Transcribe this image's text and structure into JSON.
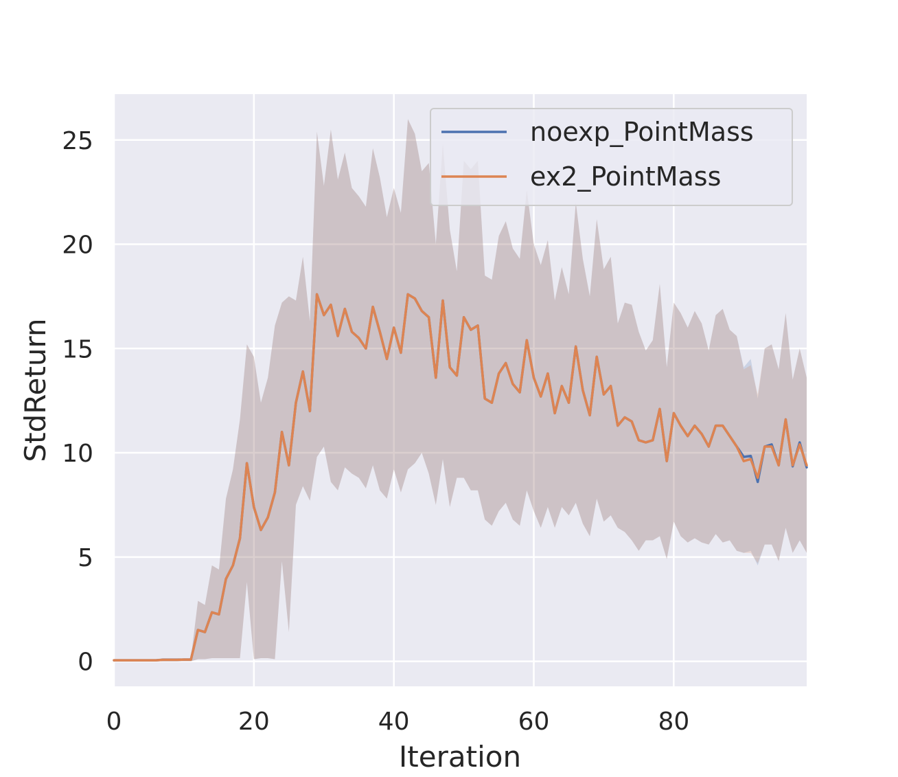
{
  "chart_data": {
    "type": "line",
    "xlabel": "Iteration",
    "ylabel": "StdReturn",
    "xlim": [
      0,
      99
    ],
    "ylim": [
      -1.2,
      27.2
    ],
    "xticks": [
      0,
      20,
      40,
      60,
      80
    ],
    "yticks": [
      0,
      5,
      10,
      15,
      20,
      25
    ],
    "grid": true,
    "legend_position": "top-right",
    "background": "#EAEAF2",
    "x": [
      0,
      1,
      2,
      3,
      4,
      5,
      6,
      7,
      8,
      9,
      10,
      11,
      12,
      13,
      14,
      15,
      16,
      17,
      18,
      19,
      20,
      21,
      22,
      23,
      24,
      25,
      26,
      27,
      28,
      29,
      30,
      31,
      32,
      33,
      34,
      35,
      36,
      37,
      38,
      39,
      40,
      41,
      42,
      43,
      44,
      45,
      46,
      47,
      48,
      49,
      50,
      51,
      52,
      53,
      54,
      55,
      56,
      57,
      58,
      59,
      60,
      61,
      62,
      63,
      64,
      65,
      66,
      67,
      68,
      69,
      70,
      71,
      72,
      73,
      74,
      75,
      76,
      77,
      78,
      79,
      80,
      81,
      82,
      83,
      84,
      85,
      86,
      87,
      88,
      89,
      90,
      91,
      92,
      93,
      94,
      95,
      96,
      97,
      98,
      99
    ],
    "series": [
      {
        "name": "noexp_PointMass",
        "color": "#4C72B0",
        "values": [
          0.05,
          0.05,
          0.05,
          0.05,
          0.05,
          0.05,
          0.05,
          0.07,
          0.07,
          0.07,
          0.08,
          0.08,
          1.5,
          1.4,
          2.35,
          2.25,
          3.95,
          4.6,
          5.9,
          9.5,
          7.4,
          6.3,
          6.9,
          8.1,
          11.0,
          9.4,
          12.4,
          13.9,
          12.0,
          17.6,
          16.6,
          17.1,
          15.6,
          16.9,
          15.8,
          15.5,
          15.0,
          17.0,
          15.8,
          14.5,
          16.0,
          14.8,
          17.6,
          17.4,
          16.8,
          16.5,
          13.6,
          17.3,
          14.1,
          13.7,
          16.5,
          15.9,
          16.1,
          12.6,
          12.4,
          13.8,
          14.3,
          13.3,
          12.9,
          15.4,
          13.6,
          12.7,
          13.8,
          11.9,
          13.2,
          12.4,
          15.1,
          13.0,
          11.8,
          14.6,
          12.8,
          13.2,
          11.3,
          11.7,
          11.5,
          10.6,
          10.5,
          10.6,
          12.1,
          9.6,
          11.9,
          11.3,
          10.8,
          11.3,
          10.9,
          10.3,
          11.3,
          11.3,
          10.8,
          10.3,
          9.8,
          9.85,
          8.6,
          10.3,
          10.4,
          9.4,
          11.6,
          9.35,
          10.5,
          9.3
        ],
        "lower": [
          0.0,
          0.0,
          0.0,
          0.0,
          0.0,
          0.0,
          0.0,
          0.0,
          0.0,
          0.0,
          0.0,
          0.0,
          0.1,
          0.1,
          0.15,
          0.15,
          0.15,
          0.15,
          0.15,
          3.8,
          0.1,
          0.15,
          0.15,
          0.1,
          4.8,
          1.4,
          7.5,
          8.4,
          7.7,
          9.8,
          10.3,
          8.6,
          8.2,
          9.3,
          9.0,
          8.8,
          8.3,
          9.4,
          8.2,
          7.8,
          9.2,
          8.1,
          9.2,
          9.5,
          10.0,
          9.0,
          7.5,
          9.7,
          7.4,
          8.8,
          8.8,
          8.2,
          8.2,
          6.8,
          6.5,
          7.2,
          7.6,
          6.8,
          6.5,
          8.2,
          7.2,
          6.4,
          7.4,
          6.4,
          7.4,
          7.0,
          7.6,
          6.6,
          6.0,
          7.8,
          6.7,
          7.0,
          6.4,
          6.2,
          5.8,
          5.3,
          5.8,
          5.8,
          6.0,
          4.9,
          6.7,
          6.0,
          5.7,
          5.9,
          5.7,
          5.6,
          6.1,
          5.7,
          5.8,
          5.3,
          5.2,
          5.3,
          4.6,
          5.6,
          5.6,
          4.8,
          6.4,
          5.2,
          5.8,
          5.2
        ],
        "upper": [
          0.1,
          0.1,
          0.1,
          0.1,
          0.1,
          0.1,
          0.1,
          0.15,
          0.15,
          0.15,
          0.15,
          0.15,
          2.9,
          2.7,
          4.6,
          4.4,
          7.8,
          9.2,
          11.6,
          15.2,
          14.6,
          12.4,
          13.6,
          16.1,
          17.2,
          17.5,
          17.3,
          19.4,
          16.3,
          25.4,
          22.8,
          25.5,
          23.1,
          24.4,
          22.7,
          22.3,
          21.8,
          24.6,
          23.2,
          21.3,
          22.7,
          21.5,
          26.0,
          25.3,
          23.5,
          23.9,
          20.0,
          24.8,
          20.7,
          18.7,
          24.0,
          23.6,
          24.0,
          18.5,
          18.3,
          20.4,
          21.1,
          19.8,
          19.3,
          22.6,
          20.0,
          19.0,
          20.2,
          17.3,
          18.9,
          17.6,
          22.0,
          19.3,
          17.5,
          21.2,
          18.8,
          19.4,
          16.2,
          17.2,
          17.1,
          15.8,
          14.9,
          15.4,
          18.1,
          14.1,
          17.2,
          16.7,
          16.0,
          16.8,
          16.2,
          14.9,
          16.6,
          16.9,
          15.9,
          15.6,
          14.1,
          14.5,
          12.6,
          15.0,
          15.2,
          14.0,
          16.7,
          13.5,
          15.0,
          13.6
        ]
      },
      {
        "name": "ex2_PointMass",
        "color": "#DD8452",
        "values": [
          0.05,
          0.05,
          0.05,
          0.05,
          0.05,
          0.05,
          0.05,
          0.07,
          0.07,
          0.07,
          0.08,
          0.08,
          1.5,
          1.4,
          2.35,
          2.25,
          3.95,
          4.6,
          5.9,
          9.5,
          7.4,
          6.3,
          6.9,
          8.1,
          11.0,
          9.4,
          12.4,
          13.9,
          12.0,
          17.6,
          16.6,
          17.1,
          15.6,
          16.9,
          15.8,
          15.5,
          15.0,
          17.0,
          15.8,
          14.5,
          16.0,
          14.8,
          17.6,
          17.4,
          16.8,
          16.5,
          13.6,
          17.3,
          14.1,
          13.7,
          16.5,
          15.9,
          16.1,
          12.6,
          12.4,
          13.8,
          14.3,
          13.3,
          12.9,
          15.4,
          13.6,
          12.7,
          13.8,
          11.9,
          13.2,
          12.4,
          15.1,
          13.0,
          11.8,
          14.6,
          12.8,
          13.2,
          11.3,
          11.7,
          11.5,
          10.6,
          10.5,
          10.6,
          12.1,
          9.6,
          11.9,
          11.3,
          10.8,
          11.3,
          10.9,
          10.3,
          11.3,
          11.3,
          10.8,
          10.3,
          9.6,
          9.7,
          8.8,
          10.3,
          10.3,
          9.4,
          11.6,
          9.4,
          10.4,
          9.4
        ],
        "lower": [
          0.0,
          0.0,
          0.0,
          0.0,
          0.0,
          0.0,
          0.0,
          0.0,
          0.0,
          0.0,
          0.0,
          0.0,
          0.1,
          0.1,
          0.15,
          0.15,
          0.15,
          0.15,
          0.15,
          3.8,
          0.1,
          0.15,
          0.15,
          0.1,
          4.8,
          1.4,
          7.5,
          8.4,
          7.7,
          9.8,
          10.3,
          8.6,
          8.2,
          9.3,
          9.0,
          8.8,
          8.3,
          9.4,
          8.2,
          7.8,
          9.2,
          8.1,
          9.2,
          9.5,
          10.0,
          9.0,
          7.5,
          9.7,
          7.4,
          8.8,
          8.8,
          8.2,
          8.2,
          6.8,
          6.5,
          7.2,
          7.6,
          6.8,
          6.5,
          8.2,
          7.2,
          6.4,
          7.4,
          6.4,
          7.4,
          7.0,
          7.6,
          6.6,
          6.0,
          7.8,
          6.7,
          7.0,
          6.4,
          6.2,
          5.8,
          5.3,
          5.8,
          5.8,
          6.0,
          4.9,
          6.7,
          6.0,
          5.7,
          5.9,
          5.7,
          5.6,
          6.1,
          5.7,
          5.8,
          5.3,
          5.2,
          5.2,
          4.7,
          5.6,
          5.6,
          4.8,
          6.4,
          5.2,
          5.8,
          5.2
        ],
        "upper": [
          0.1,
          0.1,
          0.1,
          0.1,
          0.1,
          0.1,
          0.1,
          0.15,
          0.15,
          0.15,
          0.15,
          0.15,
          2.9,
          2.7,
          4.6,
          4.4,
          7.8,
          9.2,
          11.6,
          15.2,
          14.6,
          12.4,
          13.6,
          16.1,
          17.2,
          17.5,
          17.3,
          19.4,
          16.3,
          25.4,
          22.8,
          25.5,
          23.1,
          24.4,
          22.7,
          22.3,
          21.8,
          24.6,
          23.2,
          21.3,
          22.7,
          21.5,
          26.0,
          25.3,
          23.5,
          23.9,
          20.0,
          24.8,
          20.7,
          18.7,
          24.0,
          23.6,
          24.0,
          18.5,
          18.3,
          20.4,
          21.1,
          19.8,
          19.3,
          22.6,
          20.0,
          19.0,
          20.2,
          17.3,
          18.9,
          17.6,
          22.0,
          19.3,
          17.5,
          21.2,
          18.8,
          19.4,
          16.2,
          17.2,
          17.1,
          15.8,
          14.9,
          15.4,
          18.1,
          14.1,
          17.2,
          16.7,
          16.0,
          16.8,
          16.2,
          14.9,
          16.6,
          16.9,
          15.9,
          15.6,
          14.0,
          14.2,
          12.8,
          15.0,
          15.2,
          14.0,
          16.7,
          13.5,
          15.0,
          13.6
        ]
      }
    ]
  }
}
